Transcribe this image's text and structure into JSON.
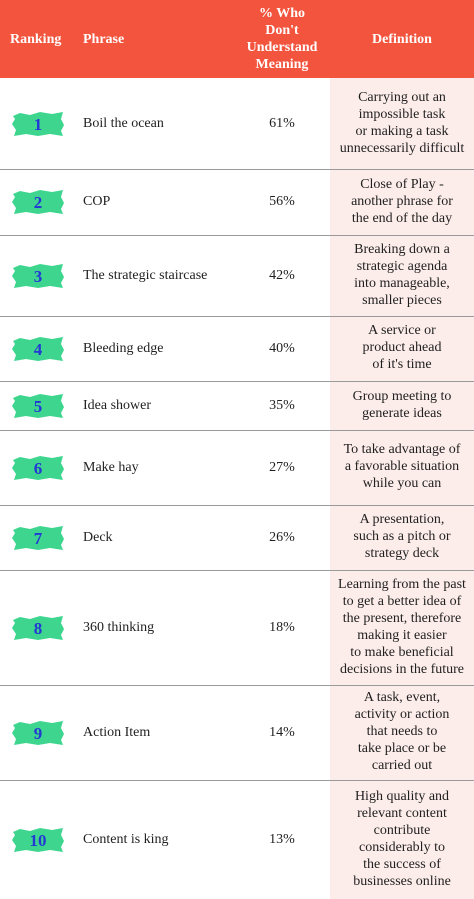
{
  "header": {
    "ranking": "Ranking",
    "phrase": "Phrase",
    "percent": [
      "% Who",
      "Don't",
      "Understand",
      "Meaning"
    ],
    "definition": "Definition"
  },
  "rows": [
    {
      "rank": "1",
      "phrase": "Boil the ocean",
      "percent": "61%",
      "definition": [
        "Carrying out an",
        "impossible task",
        "or making a task",
        "unnecessarily difficult"
      ]
    },
    {
      "rank": "2",
      "phrase": "COP",
      "percent": "56%",
      "definition": [
        "Close of Play -",
        "another phrase for",
        "the end of the day"
      ]
    },
    {
      "rank": "3",
      "phrase": "The strategic staircase",
      "percent": "42%",
      "definition": [
        "Breaking down a",
        "strategic agenda",
        "into manageable,",
        "smaller pieces"
      ]
    },
    {
      "rank": "4",
      "phrase": "Bleeding edge",
      "percent": "40%",
      "definition": [
        "A service or",
        "product ahead",
        "of it's time"
      ]
    },
    {
      "rank": "5",
      "phrase": "Idea shower",
      "percent": "35%",
      "definition": [
        "Group meeting to",
        "generate ideas"
      ]
    },
    {
      "rank": "6",
      "phrase": "Make hay",
      "percent": "27%",
      "definition": [
        "To take advantage of",
        "a favorable situation",
        "while you can"
      ]
    },
    {
      "rank": "7",
      "phrase": "Deck",
      "percent": "26%",
      "definition": [
        "A presentation,",
        "such as a pitch or",
        "strategy deck"
      ]
    },
    {
      "rank": "8",
      "phrase": "360 thinking",
      "percent": "18%",
      "definition": [
        "Learning from the past",
        "to get a better idea of",
        "the present, therefore",
        "making it easier",
        "to make beneficial",
        "decisions in the future"
      ]
    },
    {
      "rank": "9",
      "phrase": "Action Item",
      "percent": "14%",
      "definition": [
        "A task, event,",
        "activity or action",
        "that needs to",
        "take place or be",
        "carried out"
      ]
    },
    {
      "rank": "10",
      "phrase": "Content is king",
      "percent": "13%",
      "definition": [
        "High quality and",
        "relevant content",
        "contribute",
        "considerably to",
        "the success of",
        "businesses online"
      ]
    }
  ]
}
